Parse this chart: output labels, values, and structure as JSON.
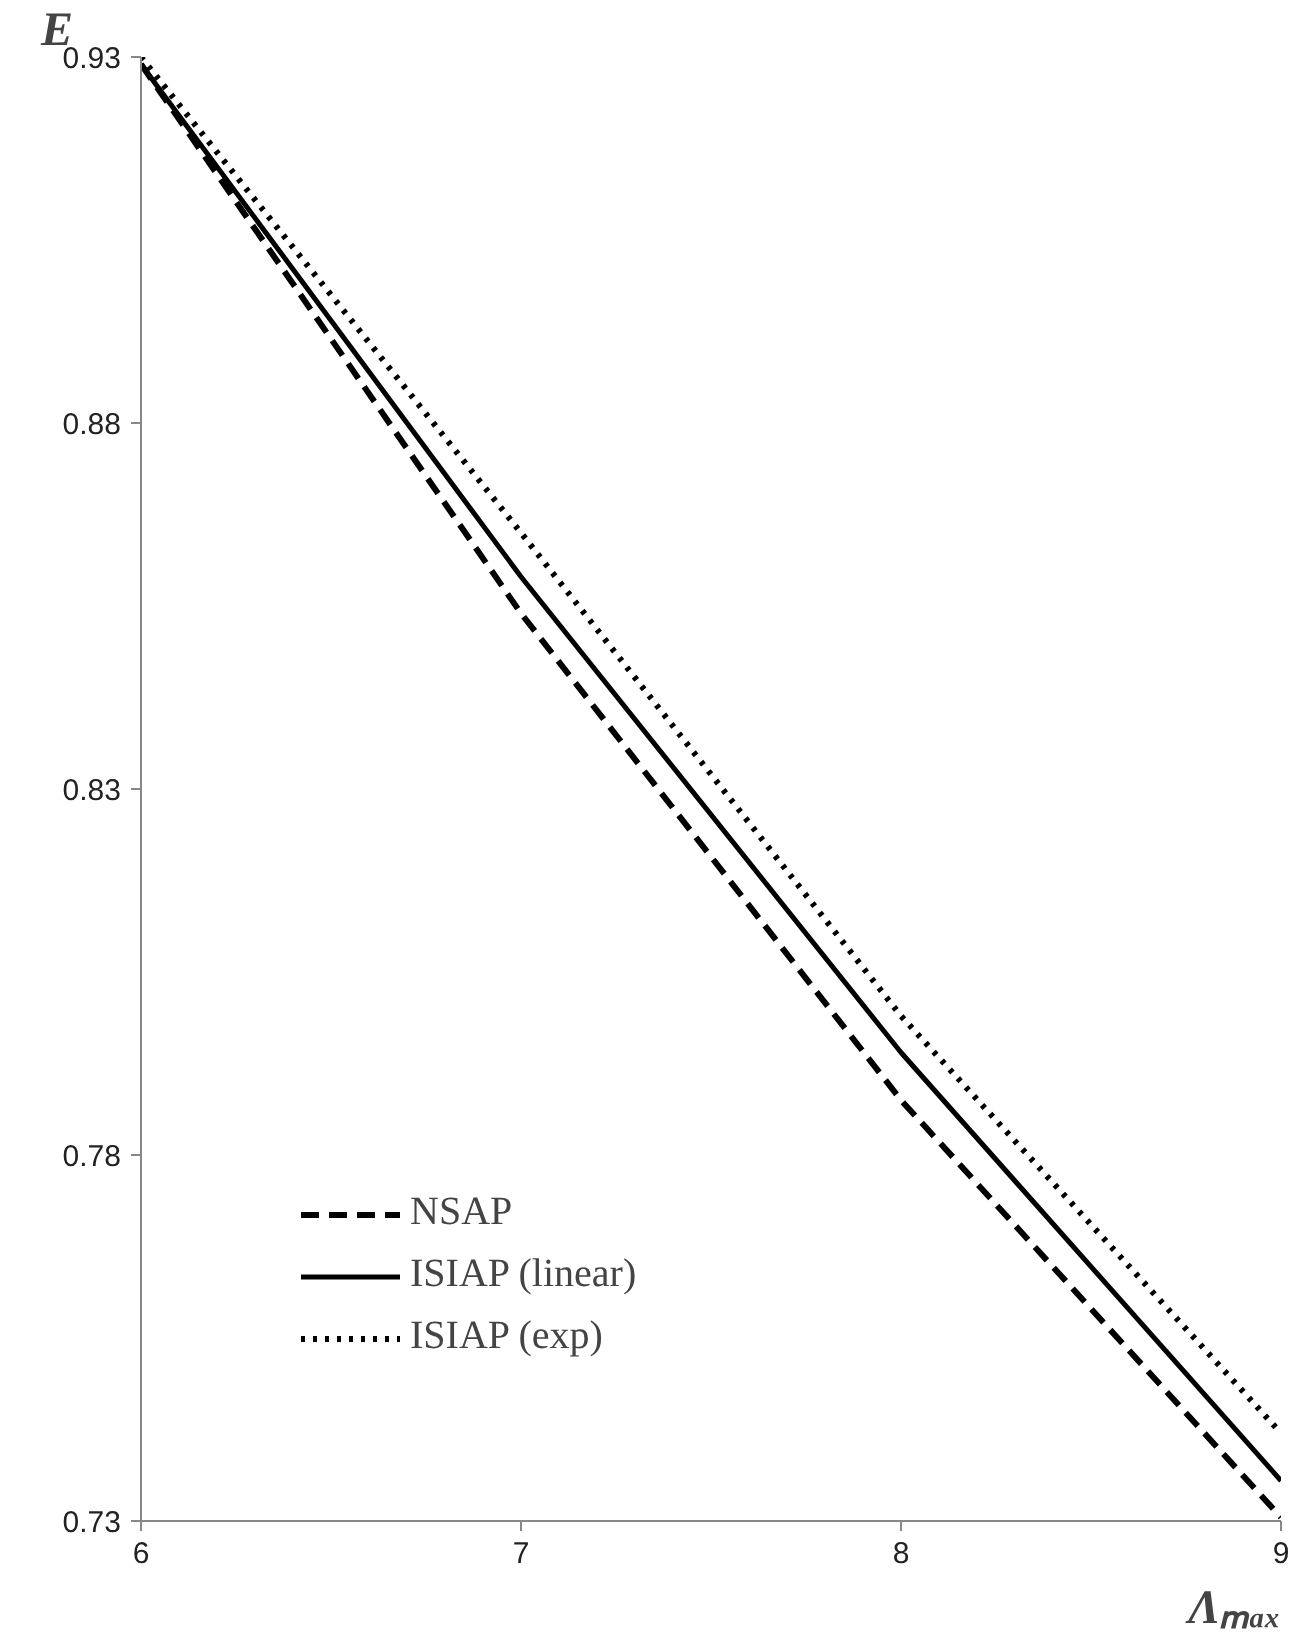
{
  "chart_data": {
    "type": "line",
    "xlabel": "Λₘₐₓ",
    "ylabel": "E",
    "x": [
      6,
      7,
      8,
      9
    ],
    "series": [
      {
        "name": "NSAP",
        "color": "#000000",
        "line_style": "dashed",
        "values": [
          0.929,
          0.854,
          0.7875,
          0.7305
        ]
      },
      {
        "name": "ISIAP (linear)",
        "color": "#000000",
        "line_style": "solid",
        "values": [
          0.929,
          0.859,
          0.794,
          0.7355
        ]
      },
      {
        "name": "ISIAP (exp)",
        "color": "#000000",
        "line_style": "dotted",
        "values": [
          0.93,
          0.865,
          0.799,
          0.742
        ]
      }
    ],
    "xlim": [
      6,
      9
    ],
    "ylim": [
      0.73,
      0.93
    ],
    "xticks": [
      6,
      7,
      8,
      9
    ],
    "yticks": [
      0.73,
      0.78,
      0.83,
      0.88,
      0.93
    ],
    "grid": false,
    "legend": "bottom left",
    "marker": "none"
  }
}
